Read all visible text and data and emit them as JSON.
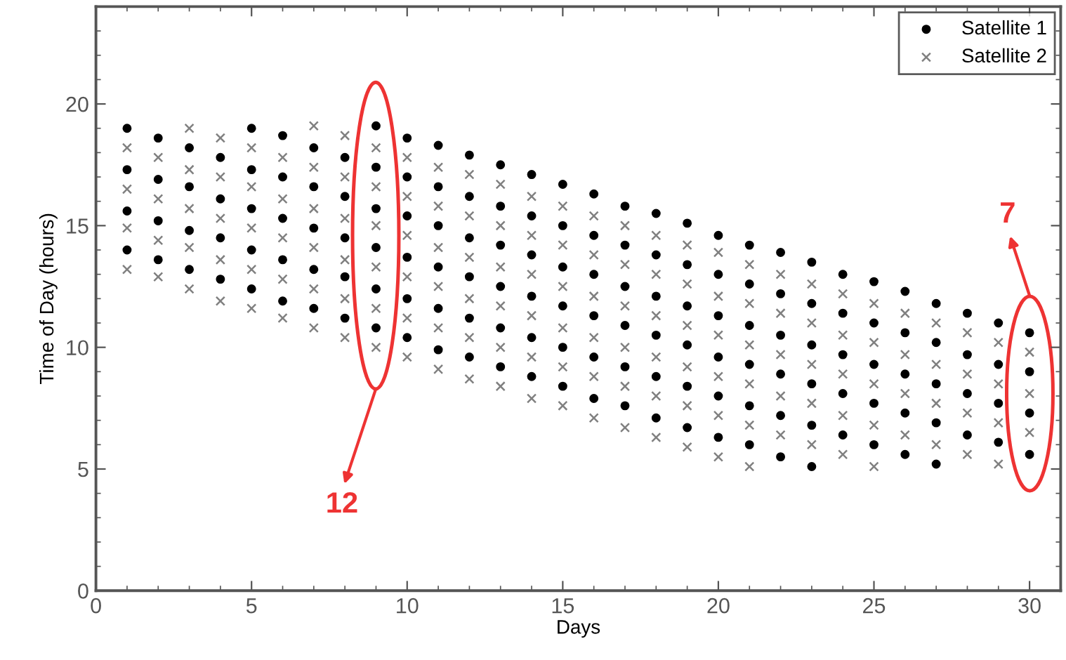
{
  "chart_data": {
    "type": "scatter",
    "xlabel": "Days",
    "ylabel": "Time of Day (hours)",
    "xlim": [
      0,
      31
    ],
    "ylim": [
      0,
      24
    ],
    "xticks": [
      0,
      5,
      10,
      15,
      20,
      25,
      30
    ],
    "yticks": [
      0,
      5,
      10,
      15,
      20
    ],
    "grid": false,
    "legend": "top right",
    "annotations": [
      "12",
      "7"
    ],
    "series": [
      {
        "name": "Satellite 1",
        "color": "#000000",
        "marker": "circle",
        "x": [
          1,
          1,
          1,
          1,
          2,
          2,
          2,
          2,
          3,
          3,
          3,
          3,
          4,
          4,
          4,
          4,
          5,
          5,
          5,
          5,
          5,
          6,
          6,
          6,
          6,
          6,
          7,
          7,
          7,
          7,
          7,
          8,
          8,
          8,
          8,
          8,
          9,
          9,
          9,
          9,
          9,
          9,
          10,
          10,
          10,
          10,
          10,
          10,
          11,
          11,
          11,
          11,
          11,
          11,
          12,
          12,
          12,
          12,
          12,
          12,
          13,
          13,
          13,
          13,
          13,
          13,
          14,
          14,
          14,
          14,
          14,
          14,
          15,
          15,
          15,
          15,
          15,
          15,
          16,
          16,
          16,
          16,
          16,
          16,
          17,
          17,
          17,
          17,
          17,
          17,
          18,
          18,
          18,
          18,
          18,
          18,
          19,
          19,
          19,
          19,
          19,
          19,
          20,
          20,
          20,
          20,
          20,
          20,
          21,
          21,
          21,
          21,
          21,
          21,
          22,
          22,
          22,
          22,
          22,
          22,
          23,
          23,
          23,
          23,
          23,
          23,
          24,
          24,
          24,
          24,
          24,
          25,
          25,
          25,
          25,
          25,
          26,
          26,
          26,
          26,
          26,
          27,
          27,
          27,
          27,
          27,
          28,
          28,
          28,
          28,
          29,
          29,
          29,
          29,
          30,
          30,
          30,
          30
        ],
        "values": [
          19.0,
          17.3,
          15.6,
          14.0,
          18.6,
          16.9,
          15.2,
          13.6,
          18.2,
          16.6,
          14.8,
          13.2,
          17.8,
          16.1,
          14.5,
          12.8,
          19.0,
          17.3,
          15.7,
          14.0,
          12.4,
          18.7,
          17.0,
          15.3,
          13.6,
          11.9,
          18.2,
          16.6,
          14.9,
          13.2,
          11.6,
          17.8,
          16.2,
          14.5,
          12.9,
          11.2,
          19.1,
          17.4,
          15.7,
          14.1,
          12.4,
          10.8,
          18.6,
          17.0,
          15.4,
          13.7,
          12.0,
          10.4,
          18.3,
          16.6,
          15.0,
          13.3,
          11.6,
          9.9,
          17.9,
          16.2,
          14.5,
          12.9,
          11.2,
          9.6,
          17.5,
          15.8,
          14.2,
          12.5,
          10.8,
          9.2,
          17.1,
          15.4,
          13.8,
          12.1,
          10.4,
          8.8,
          16.7,
          15.0,
          13.3,
          11.7,
          10.0,
          8.4,
          16.3,
          14.6,
          13.0,
          11.3,
          9.6,
          7.9,
          15.8,
          14.2,
          12.5,
          10.9,
          9.2,
          7.6,
          15.5,
          13.8,
          12.1,
          10.5,
          8.8,
          7.1,
          15.1,
          13.4,
          11.7,
          10.1,
          8.4,
          6.7,
          14.6,
          13.0,
          11.3,
          9.6,
          8.0,
          6.3,
          14.2,
          12.6,
          10.9,
          9.3,
          7.6,
          6.0,
          13.9,
          12.2,
          10.5,
          8.9,
          7.2,
          5.5,
          13.5,
          11.8,
          10.1,
          8.5,
          6.8,
          5.1,
          13.0,
          11.4,
          9.7,
          8.1,
          6.4,
          12.7,
          11.0,
          9.3,
          7.7,
          6.0,
          12.3,
          10.6,
          8.9,
          7.3,
          5.6,
          11.8,
          10.2,
          8.5,
          6.9,
          5.2,
          11.4,
          9.7,
          8.1,
          6.4,
          11.0,
          9.3,
          7.7,
          6.1,
          10.6,
          9.0,
          7.3,
          5.6
        ]
      },
      {
        "name": "Satellite 2",
        "color": "#808080",
        "marker": "cross",
        "x": [
          1,
          1,
          1,
          1,
          2,
          2,
          2,
          2,
          3,
          3,
          3,
          3,
          3,
          4,
          4,
          4,
          4,
          4,
          5,
          5,
          5,
          5,
          5,
          6,
          6,
          6,
          6,
          6,
          7,
          7,
          7,
          7,
          7,
          7,
          8,
          8,
          8,
          8,
          8,
          8,
          9,
          9,
          9,
          9,
          9,
          9,
          10,
          10,
          10,
          10,
          10,
          10,
          11,
          11,
          11,
          11,
          11,
          11,
          12,
          12,
          12,
          12,
          12,
          12,
          13,
          13,
          13,
          13,
          13,
          13,
          14,
          14,
          14,
          14,
          14,
          14,
          15,
          15,
          15,
          15,
          15,
          15,
          16,
          16,
          16,
          16,
          16,
          16,
          17,
          17,
          17,
          17,
          17,
          17,
          18,
          18,
          18,
          18,
          18,
          18,
          19,
          19,
          19,
          19,
          19,
          19,
          20,
          20,
          20,
          20,
          20,
          20,
          21,
          21,
          21,
          21,
          21,
          21,
          22,
          22,
          22,
          22,
          22,
          23,
          23,
          23,
          23,
          23,
          24,
          24,
          24,
          24,
          24,
          25,
          25,
          25,
          25,
          25,
          26,
          26,
          26,
          26,
          27,
          27,
          27,
          27,
          28,
          28,
          28,
          28,
          29,
          29,
          29,
          29,
          30,
          30,
          30
        ],
        "values": [
          18.2,
          16.5,
          14.9,
          13.2,
          17.8,
          16.1,
          14.4,
          12.9,
          19.0,
          17.3,
          15.7,
          14.1,
          12.4,
          18.6,
          17.0,
          15.3,
          13.6,
          11.9,
          18.2,
          16.6,
          14.9,
          13.2,
          11.6,
          17.8,
          16.1,
          14.5,
          12.8,
          11.2,
          19.1,
          17.4,
          15.7,
          14.1,
          12.4,
          10.8,
          18.7,
          17.0,
          15.3,
          13.6,
          12.0,
          10.4,
          18.2,
          16.6,
          15.0,
          13.3,
          11.6,
          10.0,
          17.8,
          16.2,
          14.6,
          12.9,
          11.2,
          9.6,
          17.4,
          15.8,
          14.1,
          12.5,
          10.8,
          9.1,
          17.1,
          15.4,
          13.7,
          12.0,
          10.4,
          8.7,
          16.7,
          15.0,
          13.3,
          11.7,
          10.0,
          8.4,
          16.2,
          14.6,
          13.0,
          11.3,
          9.6,
          7.9,
          15.8,
          14.2,
          12.5,
          10.8,
          9.2,
          7.6,
          15.4,
          13.8,
          12.1,
          10.4,
          8.8,
          7.1,
          15.0,
          13.4,
          11.7,
          10.0,
          8.4,
          6.7,
          14.6,
          13.0,
          11.3,
          9.6,
          8.0,
          6.3,
          14.2,
          12.6,
          10.9,
          9.2,
          7.6,
          5.9,
          13.9,
          12.1,
          10.5,
          8.8,
          7.2,
          5.5,
          13.4,
          11.8,
          10.1,
          8.5,
          6.8,
          5.1,
          13.0,
          11.4,
          9.7,
          8.0,
          6.4,
          12.6,
          11.0,
          9.3,
          7.7,
          6.0,
          12.2,
          10.5,
          8.9,
          7.2,
          5.6,
          11.8,
          10.2,
          8.5,
          6.8,
          5.1,
          11.4,
          9.7,
          8.1,
          6.4,
          11.0,
          9.3,
          7.7,
          6.0,
          10.6,
          8.9,
          7.3,
          5.6,
          10.2,
          8.5,
          6.9,
          5.2,
          9.8,
          8.1,
          6.5
        ]
      }
    ]
  }
}
